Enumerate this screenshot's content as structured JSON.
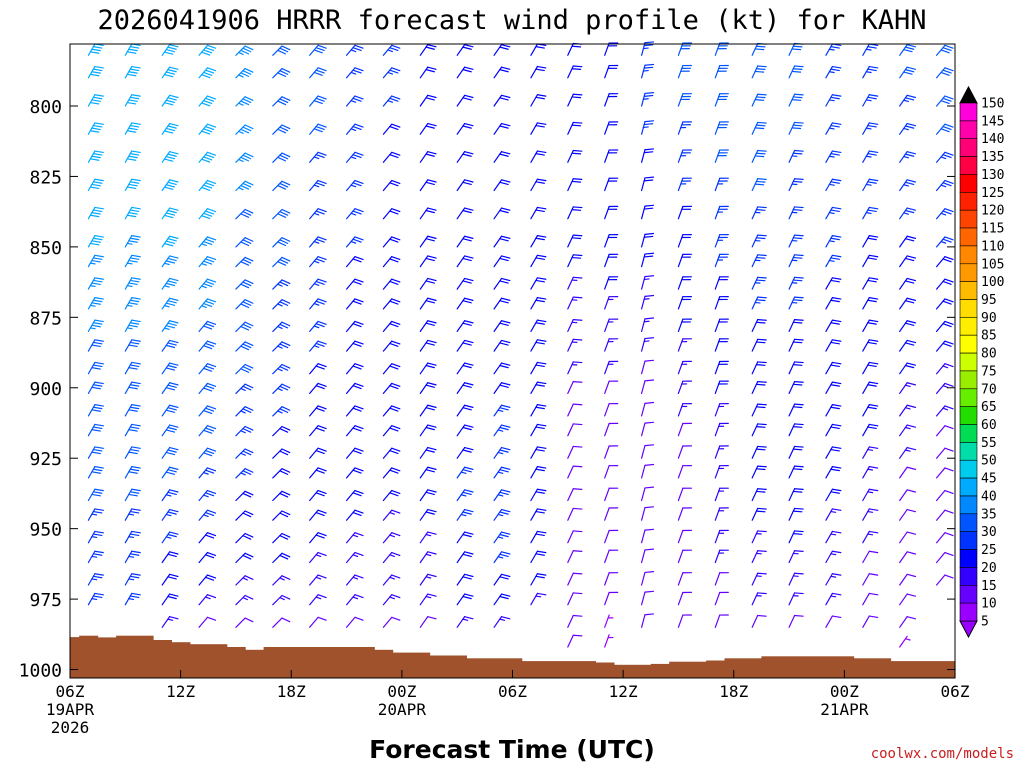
{
  "chart_data": {
    "type": "wind_barb_time_height",
    "title": "2026041906 HRRR forecast wind profile (kt) for KAHN",
    "xlabel": "Forecast Time (UTC)",
    "ylabel": "",
    "credit": "coolwx.com/models",
    "y_axis": {
      "unit": "hPa",
      "range": [
        778,
        1003
      ],
      "reversed": true,
      "ticks": [
        "800",
        "825",
        "850",
        "875",
        "900",
        "925",
        "950",
        "975",
        "1000"
      ]
    },
    "x_axis": {
      "range_hours": [
        0,
        48
      ],
      "ticks": [
        {
          "hour": 0,
          "lines": [
            "06Z",
            "19APR",
            "2026"
          ]
        },
        {
          "hour": 6,
          "lines": [
            "12Z"
          ]
        },
        {
          "hour": 12,
          "lines": [
            "18Z"
          ]
        },
        {
          "hour": 18,
          "lines": [
            "00Z",
            "20APR"
          ]
        },
        {
          "hour": 24,
          "lines": [
            "06Z"
          ]
        },
        {
          "hour": 30,
          "lines": [
            "12Z"
          ]
        },
        {
          "hour": 36,
          "lines": [
            "18Z"
          ]
        },
        {
          "hour": 42,
          "lines": [
            "00Z",
            "21APR"
          ]
        },
        {
          "hour": 48,
          "lines": [
            "06Z"
          ]
        }
      ]
    },
    "barb_levels_hpa": [
      782,
      790,
      800,
      810,
      820,
      830,
      840,
      850,
      857,
      865,
      872,
      880,
      887,
      895,
      902,
      910,
      917,
      925,
      932,
      940,
      947,
      955,
      962,
      970,
      977,
      985,
      992
    ],
    "barb_columns": [
      {
        "hour": 1,
        "sfc": 978,
        "wspd": [
          42,
          42,
          40,
          40,
          38,
          38,
          38,
          38,
          36,
          36,
          34,
          34,
          32,
          32,
          30,
          30,
          30,
          28,
          28,
          28,
          26,
          26,
          26,
          25,
          24
        ],
        "wdir": 210
      },
      {
        "hour": 3,
        "sfc": 978,
        "wspd": [
          42,
          42,
          40,
          40,
          38,
          38,
          38,
          36,
          36,
          36,
          34,
          34,
          32,
          32,
          30,
          30,
          30,
          28,
          28,
          28,
          26,
          26,
          26,
          24,
          24
        ],
        "wdir": 210
      },
      {
        "hour": 5,
        "sfc": 985,
        "wspd": [
          42,
          42,
          40,
          40,
          40,
          38,
          38,
          38,
          36,
          36,
          34,
          34,
          32,
          32,
          30,
          30,
          30,
          28,
          28,
          26,
          26,
          24,
          22,
          20,
          18,
          15
        ],
        "wdir": 215
      },
      {
        "hour": 7,
        "sfc": 985,
        "wspd": [
          40,
          40,
          40,
          40,
          38,
          38,
          38,
          36,
          36,
          34,
          34,
          32,
          32,
          30,
          30,
          30,
          28,
          28,
          26,
          26,
          24,
          22,
          20,
          18,
          15,
          12
        ],
        "wdir": 220
      },
      {
        "hour": 9,
        "sfc": 985,
        "wspd": [
          36,
          36,
          36,
          34,
          34,
          34,
          32,
          32,
          30,
          30,
          30,
          28,
          28,
          28,
          26,
          26,
          26,
          24,
          24,
          22,
          22,
          20,
          18,
          16,
          14,
          12
        ],
        "wdir": 225
      },
      {
        "hour": 11,
        "sfc": 985,
        "wspd": [
          30,
          30,
          30,
          30,
          30,
          28,
          28,
          28,
          28,
          26,
          26,
          26,
          26,
          24,
          24,
          24,
          22,
          22,
          22,
          20,
          20,
          18,
          18,
          16,
          14,
          12
        ],
        "wdir": 225
      },
      {
        "hour": 13,
        "sfc": 985,
        "wspd": [
          28,
          28,
          28,
          28,
          26,
          26,
          26,
          26,
          26,
          24,
          24,
          24,
          24,
          22,
          22,
          22,
          22,
          20,
          20,
          20,
          18,
          18,
          16,
          16,
          14,
          12
        ],
        "wdir": 220
      },
      {
        "hour": 15,
        "sfc": 985,
        "wspd": [
          26,
          26,
          26,
          24,
          24,
          24,
          24,
          24,
          22,
          22,
          22,
          22,
          22,
          20,
          20,
          20,
          20,
          20,
          18,
          18,
          18,
          16,
          16,
          14,
          14,
          12
        ],
        "wdir": 220
      },
      {
        "hour": 17,
        "sfc": 985,
        "wspd": [
          24,
          24,
          24,
          22,
          22,
          22,
          22,
          22,
          22,
          20,
          20,
          20,
          20,
          20,
          20,
          20,
          18,
          18,
          18,
          18,
          16,
          16,
          16,
          14,
          14,
          12
        ],
        "wdir": 220
      },
      {
        "hour": 19,
        "sfc": 985,
        "wspd": [
          22,
          22,
          22,
          20,
          20,
          20,
          20,
          20,
          20,
          20,
          20,
          20,
          20,
          20,
          20,
          20,
          20,
          18,
          18,
          18,
          18,
          16,
          16,
          16,
          14,
          12
        ],
        "wdir": 215
      },
      {
        "hour": 21,
        "sfc": 985,
        "wspd": [
          22,
          22,
          20,
          20,
          20,
          20,
          20,
          20,
          20,
          20,
          20,
          20,
          20,
          22,
          22,
          22,
          22,
          22,
          24,
          24,
          24,
          22,
          22,
          20,
          18,
          15
        ],
        "wdir": 215
      },
      {
        "hour": 23,
        "sfc": 985,
        "wspd": [
          22,
          22,
          20,
          20,
          20,
          20,
          20,
          20,
          20,
          20,
          20,
          20,
          22,
          22,
          22,
          24,
          24,
          24,
          26,
          26,
          26,
          24,
          24,
          22,
          20,
          16
        ],
        "wdir": 215
      },
      {
        "hour": 25,
        "sfc": 978,
        "wspd": [
          20,
          20,
          20,
          20,
          20,
          20,
          20,
          18,
          18,
          18,
          18,
          18,
          20,
          20,
          20,
          20,
          22,
          22,
          22,
          22,
          22,
          22,
          20,
          18,
          16
        ],
        "wdir": 210
      },
      {
        "hour": 27,
        "sfc": 992,
        "wspd": [
          20,
          20,
          20,
          20,
          18,
          18,
          18,
          18,
          18,
          16,
          16,
          16,
          14,
          14,
          12,
          12,
          12,
          10,
          10,
          10,
          10,
          10,
          10,
          8,
          8,
          8,
          8
        ],
        "wdir": 205
      },
      {
        "hour": 29,
        "sfc": 992,
        "wspd": [
          22,
          22,
          22,
          22,
          22,
          20,
          20,
          20,
          18,
          18,
          16,
          16,
          14,
          14,
          12,
          12,
          10,
          10,
          10,
          8,
          8,
          8,
          8,
          8,
          8,
          6,
          6
        ],
        "wdir": 200
      },
      {
        "hour": 31,
        "sfc": 985,
        "wspd": [
          26,
          26,
          24,
          24,
          22,
          22,
          20,
          18,
          18,
          16,
          16,
          14,
          14,
          12,
          12,
          10,
          10,
          10,
          10,
          10,
          10,
          10,
          10,
          10,
          10,
          8
        ],
        "wdir": 195
      },
      {
        "hour": 33,
        "sfc": 985,
        "wspd": [
          28,
          28,
          28,
          26,
          26,
          24,
          22,
          22,
          20,
          20,
          18,
          18,
          16,
          16,
          14,
          14,
          12,
          12,
          12,
          12,
          12,
          12,
          12,
          12,
          10,
          8
        ],
        "wdir": 200
      },
      {
        "hour": 35,
        "sfc": 985,
        "wspd": [
          30,
          30,
          28,
          28,
          28,
          26,
          26,
          24,
          24,
          22,
          22,
          20,
          20,
          18,
          18,
          16,
          16,
          16,
          14,
          14,
          14,
          14,
          14,
          12,
          12,
          10
        ],
        "wdir": 200
      },
      {
        "hour": 37,
        "sfc": 985,
        "wspd": [
          30,
          30,
          30,
          28,
          28,
          28,
          26,
          26,
          26,
          24,
          24,
          22,
          22,
          22,
          20,
          20,
          20,
          18,
          18,
          18,
          18,
          16,
          16,
          16,
          14,
          12
        ],
        "wdir": 205
      },
      {
        "hour": 39,
        "sfc": 985,
        "wspd": [
          28,
          28,
          28,
          28,
          26,
          26,
          26,
          26,
          24,
          24,
          24,
          22,
          22,
          22,
          22,
          20,
          20,
          20,
          20,
          18,
          18,
          18,
          16,
          16,
          14,
          12
        ],
        "wdir": 205
      },
      {
        "hour": 41,
        "sfc": 985,
        "wspd": [
          26,
          26,
          26,
          26,
          26,
          24,
          24,
          24,
          24,
          22,
          22,
          22,
          22,
          20,
          20,
          20,
          20,
          18,
          18,
          18,
          16,
          16,
          16,
          14,
          14,
          12
        ],
        "wdir": 210
      },
      {
        "hour": 43,
        "sfc": 985,
        "wspd": [
          26,
          26,
          26,
          24,
          24,
          24,
          24,
          22,
          22,
          22,
          22,
          20,
          20,
          20,
          18,
          18,
          18,
          16,
          16,
          16,
          14,
          14,
          12,
          12,
          10,
          10
        ],
        "wdir": 210
      },
      {
        "hour": 45,
        "sfc": 992,
        "wspd": [
          28,
          28,
          26,
          26,
          26,
          24,
          24,
          22,
          22,
          22,
          20,
          20,
          18,
          18,
          16,
          16,
          14,
          14,
          12,
          12,
          10,
          10,
          10,
          8,
          8,
          8,
          6
        ],
        "wdir": 215
      },
      {
        "hour": 47,
        "sfc": 977,
        "wspd": [
          30,
          30,
          28,
          28,
          26,
          26,
          24,
          24,
          22,
          22,
          20,
          20,
          18,
          16,
          14,
          14,
          12,
          12,
          10,
          10,
          10,
          10,
          10,
          10
        ],
        "wdir": 220
      }
    ],
    "terrain": {
      "color": "#a0522d",
      "steps": [
        {
          "from_hour": 0,
          "to_hour": 0.5,
          "hpa": 988.5
        },
        {
          "from_hour": 0.5,
          "to_hour": 1.5,
          "hpa": 988
        },
        {
          "from_hour": 1.5,
          "to_hour": 2.5,
          "hpa": 988.6
        },
        {
          "from_hour": 2.5,
          "to_hour": 4.5,
          "hpa": 988
        },
        {
          "from_hour": 4.5,
          "to_hour": 5.5,
          "hpa": 989.5
        },
        {
          "from_hour": 5.5,
          "to_hour": 6.5,
          "hpa": 990.3
        },
        {
          "from_hour": 6.5,
          "to_hour": 8.5,
          "hpa": 991
        },
        {
          "from_hour": 8.5,
          "to_hour": 9.5,
          "hpa": 992
        },
        {
          "from_hour": 9.5,
          "to_hour": 10.5,
          "hpa": 993
        },
        {
          "from_hour": 10.5,
          "to_hour": 16.5,
          "hpa": 992
        },
        {
          "from_hour": 16.5,
          "to_hour": 17.5,
          "hpa": 993
        },
        {
          "from_hour": 17.5,
          "to_hour": 19.5,
          "hpa": 994
        },
        {
          "from_hour": 19.5,
          "to_hour": 21.5,
          "hpa": 995
        },
        {
          "from_hour": 21.5,
          "to_hour": 24.5,
          "hpa": 996
        },
        {
          "from_hour": 24.5,
          "to_hour": 28.5,
          "hpa": 997
        },
        {
          "from_hour": 28.5,
          "to_hour": 29.5,
          "hpa": 997.5
        },
        {
          "from_hour": 29.5,
          "to_hour": 31.5,
          "hpa": 998.3
        },
        {
          "from_hour": 31.5,
          "to_hour": 32.5,
          "hpa": 998
        },
        {
          "from_hour": 32.5,
          "to_hour": 34.5,
          "hpa": 997.2
        },
        {
          "from_hour": 34.5,
          "to_hour": 35.5,
          "hpa": 996.8
        },
        {
          "from_hour": 35.5,
          "to_hour": 37.5,
          "hpa": 996
        },
        {
          "from_hour": 37.5,
          "to_hour": 42.5,
          "hpa": 995.3
        },
        {
          "from_hour": 42.5,
          "to_hour": 44.5,
          "hpa": 996
        },
        {
          "from_hour": 44.5,
          "to_hour": 48,
          "hpa": 997
        }
      ]
    },
    "colorbar": {
      "unit": "kt",
      "labels": [
        "5",
        "10",
        "15",
        "20",
        "25",
        "30",
        "35",
        "40",
        "45",
        "50",
        "55",
        "60",
        "65",
        "70",
        "75",
        "80",
        "85",
        "90",
        "95",
        "100",
        "105",
        "110",
        "115",
        "120",
        "125",
        "130",
        "135",
        "140",
        "145",
        "150"
      ],
      "colors": [
        "#9900ff",
        "#6600ff",
        "#3300ff",
        "#0000ff",
        "#0033ff",
        "#0055ff",
        "#0088ff",
        "#00aaff",
        "#00ccee",
        "#00ddaa",
        "#00dd55",
        "#22dd00",
        "#66ee00",
        "#99ee00",
        "#ccff00",
        "#ffff00",
        "#ffee00",
        "#ffdd00",
        "#ffbb00",
        "#ff9900",
        "#ff8800",
        "#ff6600",
        "#ff4400",
        "#ff2200",
        "#ff0000",
        "#ff0044",
        "#ff0077",
        "#ff00aa",
        "#ff00dd",
        "#ff00ff"
      ]
    }
  }
}
